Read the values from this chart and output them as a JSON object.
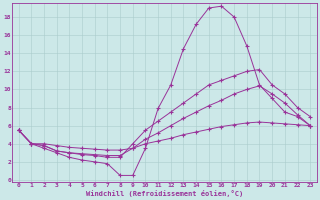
{
  "xlabel": "Windchill (Refroidissement éolien,°C)",
  "background_color": "#cce8e8",
  "grid_color": "#aacccc",
  "line_color": "#993399",
  "spine_color": "#993399",
  "xlim": [
    -0.5,
    23.5
  ],
  "ylim": [
    -0.2,
    19.5
  ],
  "xticks": [
    0,
    1,
    2,
    3,
    4,
    5,
    6,
    7,
    8,
    9,
    10,
    11,
    12,
    13,
    14,
    15,
    16,
    17,
    18,
    19,
    20,
    21,
    22,
    23
  ],
  "yticks": [
    0,
    2,
    4,
    6,
    8,
    10,
    12,
    14,
    16,
    18
  ],
  "line1_x": [
    0,
    1,
    2,
    3,
    4,
    5,
    6,
    7,
    8,
    9,
    10,
    11,
    12,
    13,
    14,
    15,
    16,
    17,
    18,
    19,
    20,
    21,
    22,
    23
  ],
  "line1_y": [
    5.5,
    4.0,
    3.5,
    3.0,
    2.5,
    2.2,
    2.0,
    1.8,
    0.5,
    0.5,
    3.5,
    7.9,
    10.5,
    14.5,
    17.2,
    19.0,
    19.2,
    18.0,
    14.8,
    10.5,
    9.0,
    7.5,
    7.0,
    6.0
  ],
  "line2_x": [
    0,
    1,
    2,
    3,
    4,
    5,
    6,
    7,
    8,
    9,
    10,
    11,
    12,
    13,
    14,
    15,
    16,
    17,
    18,
    19,
    20,
    21,
    22,
    23
  ],
  "line2_y": [
    5.5,
    4.0,
    3.8,
    3.2,
    3.0,
    2.8,
    2.7,
    2.5,
    2.5,
    4.0,
    5.5,
    6.5,
    7.5,
    8.5,
    9.5,
    10.5,
    11.0,
    11.5,
    12.0,
    12.2,
    10.5,
    9.5,
    8.0,
    7.0
  ],
  "line3_x": [
    0,
    1,
    2,
    3,
    4,
    5,
    6,
    7,
    8,
    9,
    10,
    11,
    12,
    13,
    14,
    15,
    16,
    17,
    18,
    19,
    20,
    21,
    22,
    23
  ],
  "line3_y": [
    5.5,
    4.0,
    3.8,
    3.2,
    3.0,
    2.9,
    2.8,
    2.7,
    2.7,
    3.5,
    4.5,
    5.2,
    6.0,
    6.8,
    7.5,
    8.2,
    8.8,
    9.5,
    10.0,
    10.4,
    9.5,
    8.5,
    7.2,
    6.0
  ],
  "line4_x": [
    0,
    1,
    2,
    3,
    4,
    5,
    6,
    7,
    8,
    9,
    10,
    11,
    12,
    13,
    14,
    15,
    16,
    17,
    18,
    19,
    20,
    21,
    22,
    23
  ],
  "line4_y": [
    5.5,
    4.0,
    4.0,
    3.8,
    3.6,
    3.5,
    3.4,
    3.3,
    3.3,
    3.5,
    4.0,
    4.3,
    4.6,
    5.0,
    5.3,
    5.6,
    5.9,
    6.1,
    6.3,
    6.4,
    6.3,
    6.2,
    6.1,
    6.0
  ],
  "tick_fontsize": 4.5,
  "xlabel_fontsize": 5.0
}
